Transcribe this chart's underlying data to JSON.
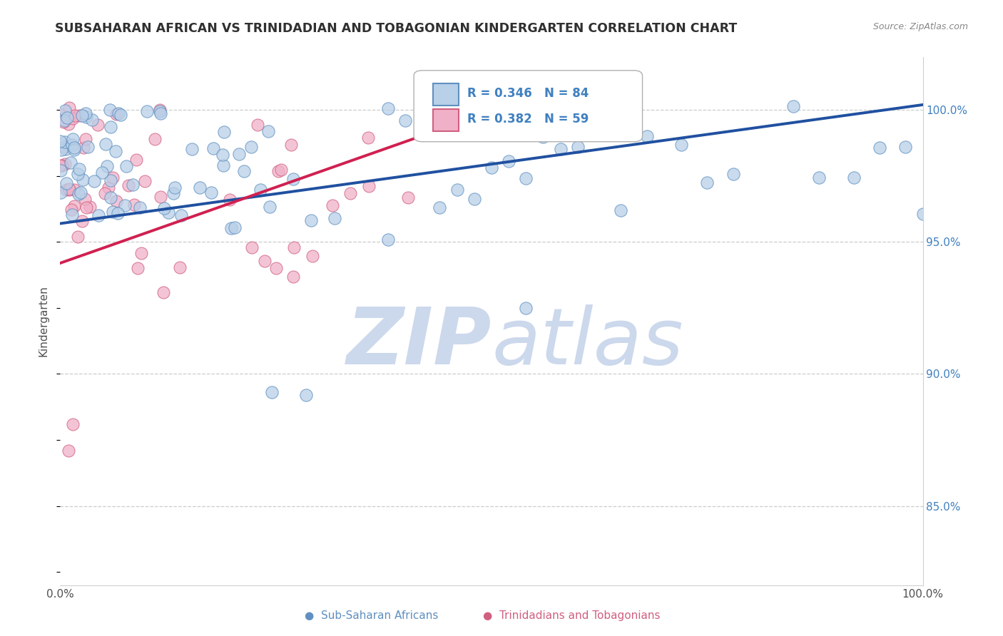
{
  "title": "SUBSAHARAN AFRICAN VS TRINIDADIAN AND TOBAGONIAN KINDERGARTEN CORRELATION CHART",
  "source": "Source: ZipAtlas.com",
  "ylabel": "Kindergarten",
  "legend_blue": {
    "R": "R = 0.346",
    "N": "N = 84",
    "label": "Sub-Saharan Africans"
  },
  "legend_pink": {
    "R": "R = 0.382",
    "N": "N = 59",
    "label": "Trinidadians and Tobagonians"
  },
  "blue_color": "#b8d0e8",
  "blue_edge": "#6090c0",
  "pink_color": "#f0b0c8",
  "pink_edge": "#d06080",
  "blue_line_color": "#2050a0",
  "pink_line_color": "#d02050",
  "title_color": "#303030",
  "axis_color": "#505050",
  "grid_color": "#cccccc",
  "ytick_color": "#4080c0",
  "watermark_color": "#ccd8ec",
  "xlim": [
    0.0,
    1.0
  ],
  "ylim": [
    0.82,
    1.02
  ],
  "yticks": [
    1.0,
    0.95,
    0.9,
    0.85
  ],
  "ytick_labels": [
    "100.0%",
    "95.0%",
    "90.0%",
    "85.0%"
  ]
}
